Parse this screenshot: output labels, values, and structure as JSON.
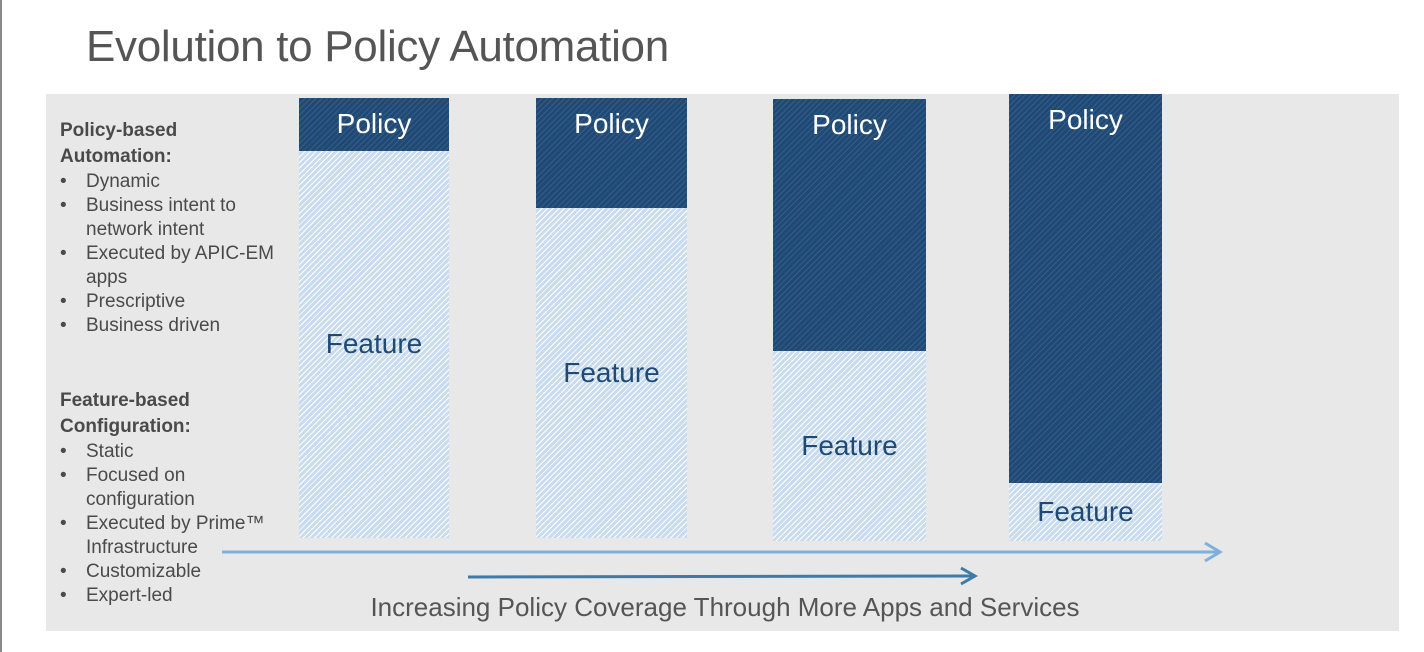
{
  "slide": {
    "title": "Evolution to Policy Automation",
    "caption": "Increasing Policy Coverage Through More Apps and Services"
  },
  "legend": {
    "policy": {
      "heading": "Policy-based Automation:",
      "items": [
        "Dynamic",
        "Business intent to network intent",
        "Executed by APIC-EM apps",
        "Prescriptive",
        "Business driven"
      ]
    },
    "feature": {
      "heading": "Feature-based Configuration:",
      "items": [
        "Static",
        "Focused on configuration",
        "Executed by Prime™ Infrastructure",
        "Customizable",
        "Expert-led"
      ]
    }
  },
  "bars": [
    {
      "policy_label": "Policy",
      "feature_label": "Feature",
      "policy_share": 0.12
    },
    {
      "policy_label": "Policy",
      "feature_label": "Feature",
      "policy_share": 0.25
    },
    {
      "policy_label": "Policy",
      "feature_label": "Feature",
      "policy_share": 0.57
    },
    {
      "policy_label": "Policy",
      "feature_label": "Feature",
      "policy_share": 0.87
    }
  ],
  "colors": {
    "policy": "#1f4a75",
    "feature": "#c9dcef",
    "arrow_long": "#7fb0dc",
    "arrow_short": "#3f7aa8",
    "panel": "#e8e8e8"
  }
}
